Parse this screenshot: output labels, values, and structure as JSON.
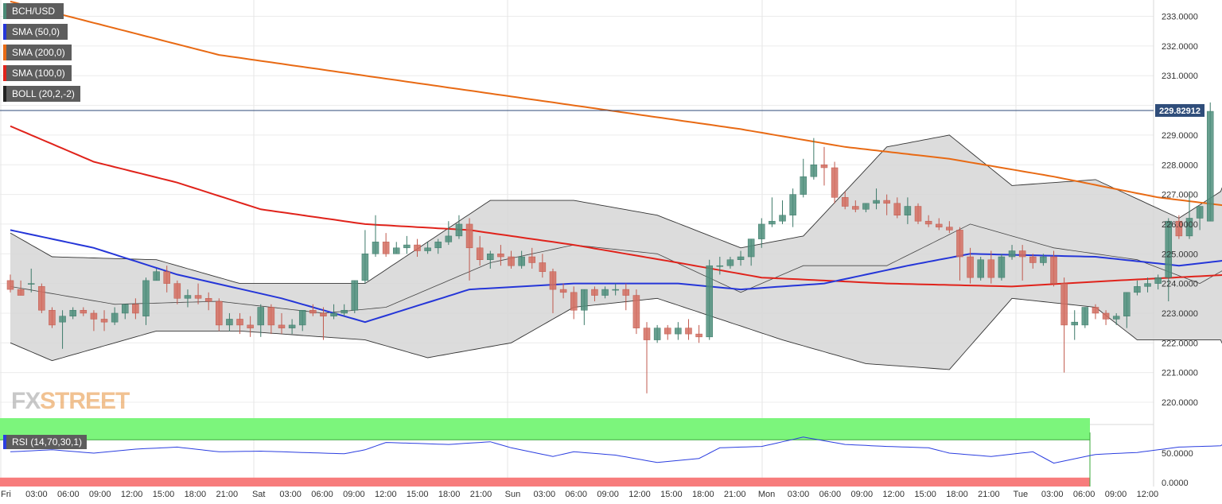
{
  "chart_data": {
    "type": "candlestick",
    "symbol": "BCH/USD",
    "last_price": "229.82912",
    "indicators": [
      {
        "label": "BCH/USD",
        "color": "#4a8a76"
      },
      {
        "label": "SMA (50,0)",
        "color": "#2536d8"
      },
      {
        "label": "SMA (200,0)",
        "color": "#e86a14"
      },
      {
        "label": "SMA (100,0)",
        "color": "#e0231b"
      },
      {
        "label": "BOLL (20,2,-2)",
        "color": "#222222"
      }
    ],
    "y_axis": {
      "ticks": [
        233,
        232,
        231,
        230,
        229,
        228,
        227,
        226,
        225,
        224,
        223,
        222,
        221,
        220
      ],
      "labels": [
        "233.0000",
        "232.0000",
        "231.0000",
        "230.0000",
        "229.0000",
        "228.0000",
        "227.0000",
        "226.0000",
        "225.0000",
        "224.0000",
        "223.0000",
        "222.0000",
        "221.0000",
        "220.0000"
      ],
      "range": [
        219.25,
        233.55
      ]
    },
    "x_axis": {
      "labels": [
        "Fri",
        "03:00",
        "06:00",
        "09:00",
        "12:00",
        "15:00",
        "18:00",
        "21:00",
        "Sat",
        "03:00",
        "06:00",
        "09:00",
        "12:00",
        "15:00",
        "18:00",
        "21:00",
        "Sun",
        "03:00",
        "06:00",
        "09:00",
        "12:00",
        "15:00",
        "18:00",
        "21:00",
        "Mon",
        "03:00",
        "06:00",
        "09:00",
        "12:00",
        "15:00",
        "18:00",
        "21:00",
        "Tue",
        "03:00",
        "06:00",
        "09:00",
        "12:00"
      ],
      "interval_hours": 3
    },
    "candles": [
      [
        224.1,
        224.3,
        223.8,
        223.7
      ],
      [
        223.8,
        224.1,
        223.6,
        224.1
      ],
      [
        224.0,
        224.5,
        224.0,
        223.7
      ],
      [
        223.9,
        224.0,
        223.1,
        223.0
      ],
      [
        223.1,
        223.2,
        222.6,
        222.5
      ],
      [
        222.7,
        223.1,
        222.9,
        221.8
      ],
      [
        222.9,
        223.2,
        223.1,
        222.8
      ],
      [
        223.1,
        223.2,
        223.0,
        222.9
      ],
      [
        223.0,
        223.1,
        222.8,
        222.4
      ],
      [
        222.8,
        223.1,
        222.7,
        222.4
      ],
      [
        222.7,
        223.2,
        223.0,
        222.6
      ],
      [
        223.0,
        223.2,
        223.3,
        222.8
      ],
      [
        223.3,
        223.5,
        223.0,
        222.8
      ],
      [
        222.9,
        224.2,
        224.1,
        222.6
      ],
      [
        224.1,
        224.5,
        224.4,
        225.3
      ],
      [
        224.4,
        224.6,
        224.0,
        223.7
      ],
      [
        224.0,
        224.1,
        223.5,
        223.3
      ],
      [
        223.5,
        223.8,
        223.6,
        223.2
      ],
      [
        223.6,
        224.0,
        223.5,
        223.3
      ],
      [
        223.5,
        223.7,
        223.4,
        223.1
      ],
      [
        223.4,
        223.5,
        222.6,
        222.4
      ],
      [
        222.6,
        223.0,
        222.8,
        222.4
      ],
      [
        222.8,
        223.0,
        222.6,
        222.3
      ],
      [
        222.6,
        222.9,
        222.5,
        222.2
      ],
      [
        222.6,
        223.3,
        223.2,
        222.2
      ],
      [
        223.2,
        223.3,
        222.6,
        222.3
      ],
      [
        222.6,
        223.0,
        222.5,
        222.3
      ],
      [
        222.5,
        222.8,
        222.6,
        222.3
      ],
      [
        222.6,
        223.1,
        223.1,
        222.4
      ],
      [
        223.1,
        223.3,
        223.0,
        222.9
      ],
      [
        223.0,
        223.2,
        222.9,
        222.1
      ],
      [
        222.9,
        223.3,
        223.0,
        222.8
      ],
      [
        223.0,
        223.3,
        223.1,
        222.9
      ],
      [
        223.1,
        223.4,
        224.1,
        223.0
      ],
      [
        224.1,
        225.8,
        225.0,
        224.0
      ],
      [
        225.0,
        226.3,
        225.4,
        224.9
      ],
      [
        225.4,
        225.7,
        225.0,
        224.9
      ],
      [
        225.0,
        225.4,
        225.2,
        225.0
      ],
      [
        225.2,
        225.6,
        225.3,
        225.0
      ],
      [
        225.3,
        225.5,
        225.1,
        224.9
      ],
      [
        225.1,
        225.4,
        225.2,
        225.0
      ],
      [
        225.2,
        225.5,
        225.4,
        225.0
      ],
      [
        225.4,
        226.1,
        225.6,
        225.3
      ],
      [
        225.6,
        226.3,
        226.0,
        225.5
      ],
      [
        226.0,
        226.2,
        225.2,
        224.1
      ],
      [
        225.2,
        225.6,
        224.8,
        224.6
      ],
      [
        224.8,
        225.1,
        225.0,
        224.5
      ],
      [
        225.0,
        225.3,
        224.9,
        224.6
      ],
      [
        224.9,
        225.1,
        224.6,
        224.5
      ],
      [
        224.6,
        225.1,
        224.9,
        224.5
      ],
      [
        224.9,
        225.2,
        224.7,
        224.5
      ],
      [
        224.7,
        225.0,
        224.4,
        224.2
      ],
      [
        224.4,
        224.5,
        223.8,
        223.0
      ],
      [
        223.8,
        224.0,
        223.7,
        223.5
      ],
      [
        223.7,
        223.9,
        223.1,
        222.8
      ],
      [
        223.1,
        223.5,
        223.8,
        222.6
      ],
      [
        223.8,
        223.9,
        223.6,
        223.4
      ],
      [
        223.6,
        223.9,
        223.8,
        223.5
      ],
      [
        223.8,
        224.0,
        223.8,
        223.6
      ],
      [
        223.8,
        224.0,
        223.6,
        223.1
      ],
      [
        223.6,
        223.8,
        222.5,
        222.3
      ],
      [
        222.5,
        222.7,
        222.1,
        220.3
      ],
      [
        222.1,
        222.6,
        222.5,
        222.0
      ],
      [
        222.5,
        222.6,
        222.3,
        222.1
      ],
      [
        222.3,
        222.7,
        222.5,
        222.1
      ],
      [
        222.5,
        222.8,
        222.3,
        222.1
      ],
      [
        222.3,
        222.6,
        222.2,
        222.0
      ],
      [
        222.2,
        224.8,
        224.6,
        222.1
      ],
      [
        224.6,
        224.9,
        224.6,
        224.3
      ],
      [
        224.6,
        224.9,
        224.8,
        224.5
      ],
      [
        224.8,
        225.1,
        224.9,
        224.6
      ],
      [
        224.9,
        225.5,
        225.5,
        224.6
      ],
      [
        225.5,
        226.2,
        226.0,
        225.2
      ],
      [
        226.0,
        226.9,
        226.1,
        225.9
      ],
      [
        226.1,
        226.8,
        226.3,
        226.0
      ],
      [
        226.3,
        227.2,
        227.0,
        225.9
      ],
      [
        227.0,
        228.2,
        227.6,
        226.9
      ],
      [
        227.6,
        228.9,
        228.0,
        227.5
      ],
      [
        228.0,
        228.6,
        227.9,
        227.3
      ],
      [
        227.9,
        228.1,
        226.9,
        226.7
      ],
      [
        226.9,
        227.1,
        226.6,
        226.5
      ],
      [
        226.6,
        226.8,
        226.5,
        226.4
      ],
      [
        226.5,
        226.7,
        226.7,
        226.4
      ],
      [
        226.7,
        227.2,
        226.8,
        226.5
      ],
      [
        226.8,
        227.0,
        226.7,
        226.3
      ],
      [
        226.7,
        226.9,
        226.3,
        226.2
      ],
      [
        226.3,
        226.9,
        226.6,
        226.0
      ],
      [
        226.6,
        226.7,
        226.1,
        226.0
      ],
      [
        226.1,
        226.3,
        226.0,
        225.9
      ],
      [
        226.0,
        226.2,
        225.9,
        225.8
      ],
      [
        225.9,
        226.1,
        225.8,
        225.7
      ],
      [
        225.8,
        225.9,
        224.9,
        224.1
      ],
      [
        224.9,
        225.2,
        224.2,
        224.0
      ],
      [
        224.2,
        224.9,
        224.8,
        224.1
      ],
      [
        224.8,
        225.1,
        224.2,
        224.0
      ],
      [
        224.2,
        225.0,
        224.9,
        224.1
      ],
      [
        224.9,
        225.3,
        225.1,
        224.8
      ],
      [
        225.1,
        225.3,
        224.9,
        224.1
      ],
      [
        224.9,
        225.0,
        224.7,
        224.5
      ],
      [
        224.7,
        225.0,
        224.9,
        224.6
      ],
      [
        224.9,
        225.1,
        224.0,
        223.9
      ],
      [
        224.0,
        224.2,
        222.6,
        221.0
      ],
      [
        222.6,
        223.1,
        222.7,
        222.1
      ],
      [
        222.6,
        223.0,
        223.2,
        222.5
      ],
      [
        223.2,
        223.3,
        223.0,
        222.8
      ],
      [
        223.0,
        223.1,
        222.8,
        222.6
      ],
      [
        222.8,
        223.0,
        222.9,
        222.6
      ],
      [
        222.9,
        223.5,
        223.7,
        222.5
      ],
      [
        223.7,
        224.1,
        223.9,
        223.6
      ],
      [
        223.9,
        224.2,
        224.0,
        223.7
      ],
      [
        224.0,
        224.3,
        224.2,
        223.8
      ],
      [
        224.2,
        226.2,
        226.1,
        223.4
      ],
      [
        226.1,
        226.3,
        225.6,
        225.5
      ],
      [
        225.6,
        227.1,
        226.2,
        225.5
      ],
      [
        226.2,
        226.6,
        226.6,
        225.8
      ],
      [
        226.1,
        230.1,
        229.8,
        226.1
      ]
    ],
    "sma200": [
      [
        0,
        233.5
      ],
      [
        10,
        232.6
      ],
      [
        20,
        231.7
      ],
      [
        30,
        231.2
      ],
      [
        40,
        230.7
      ],
      [
        50,
        230.2
      ],
      [
        60,
        229.7
      ],
      [
        70,
        229.2
      ],
      [
        80,
        228.6
      ],
      [
        90,
        228.2
      ],
      [
        100,
        227.6
      ],
      [
        110,
        226.9
      ],
      [
        117,
        226.6
      ]
    ],
    "sma100": [
      [
        0,
        229.3
      ],
      [
        8,
        228.1
      ],
      [
        16,
        227.4
      ],
      [
        24,
        226.5
      ],
      [
        34,
        226.0
      ],
      [
        44,
        225.8
      ],
      [
        54,
        225.3
      ],
      [
        64,
        224.7
      ],
      [
        72,
        224.2
      ],
      [
        84,
        224.0
      ],
      [
        96,
        223.9
      ],
      [
        106,
        224.1
      ],
      [
        117,
        224.3
      ]
    ],
    "sma50": [
      [
        0,
        225.8
      ],
      [
        8,
        225.2
      ],
      [
        16,
        224.3
      ],
      [
        26,
        223.5
      ],
      [
        34,
        222.7
      ],
      [
        44,
        223.8
      ],
      [
        54,
        224.0
      ],
      [
        64,
        224.0
      ],
      [
        70,
        223.8
      ],
      [
        78,
        224.0
      ],
      [
        86,
        224.6
      ],
      [
        92,
        225.0
      ],
      [
        104,
        224.9
      ],
      [
        112,
        224.6
      ],
      [
        117,
        224.8
      ]
    ],
    "boll_upper": [
      [
        0,
        225.7
      ],
      [
        4,
        224.9
      ],
      [
        14,
        224.8
      ],
      [
        22,
        224.0
      ],
      [
        34,
        224.0
      ],
      [
        46,
        226.8
      ],
      [
        54,
        226.8
      ],
      [
        62,
        226.3
      ],
      [
        70,
        225.2
      ],
      [
        76,
        225.6
      ],
      [
        84,
        228.6
      ],
      [
        90,
        229.0
      ],
      [
        96,
        227.3
      ],
      [
        104,
        227.5
      ],
      [
        112,
        226.2
      ],
      [
        116,
        227.1
      ],
      [
        117,
        228.0
      ]
    ],
    "boll_middle": [
      [
        0,
        223.9
      ],
      [
        10,
        223.3
      ],
      [
        20,
        223.4
      ],
      [
        30,
        223.0
      ],
      [
        36,
        223.2
      ],
      [
        46,
        224.7
      ],
      [
        54,
        225.3
      ],
      [
        62,
        225.0
      ],
      [
        70,
        223.7
      ],
      [
        76,
        224.6
      ],
      [
        84,
        224.6
      ],
      [
        92,
        226.0
      ],
      [
        100,
        225.2
      ],
      [
        108,
        224.8
      ],
      [
        114,
        224.0
      ],
      [
        117,
        224.6
      ]
    ],
    "boll_lower": [
      [
        0,
        222.0
      ],
      [
        4,
        221.4
      ],
      [
        14,
        222.4
      ],
      [
        22,
        222.4
      ],
      [
        34,
        222.1
      ],
      [
        40,
        221.5
      ],
      [
        48,
        222.0
      ],
      [
        54,
        223.2
      ],
      [
        62,
        223.5
      ],
      [
        68,
        222.8
      ],
      [
        74,
        222.1
      ],
      [
        82,
        221.3
      ],
      [
        90,
        221.1
      ],
      [
        96,
        223.5
      ],
      [
        104,
        223.2
      ],
      [
        108,
        222.1
      ],
      [
        116,
        222.1
      ],
      [
        117,
        221.3
      ]
    ],
    "rsi": {
      "label": "RSI (14,70,30,1)",
      "ticks": [
        50,
        0
      ],
      "labels": [
        "50.0000",
        "0.0000"
      ],
      "range": [
        0,
        100
      ],
      "overbought": 70,
      "oversold": 30,
      "values": [
        [
          0,
          52
        ],
        [
          4,
          55
        ],
        [
          8,
          50
        ],
        [
          12,
          56
        ],
        [
          16,
          59
        ],
        [
          20,
          52
        ],
        [
          24,
          53
        ],
        [
          28,
          51
        ],
        [
          32,
          49
        ],
        [
          34,
          55
        ],
        [
          36,
          66
        ],
        [
          42,
          63
        ],
        [
          46,
          67
        ],
        [
          48,
          58
        ],
        [
          52,
          45
        ],
        [
          54,
          52
        ],
        [
          58,
          47
        ],
        [
          62,
          36
        ],
        [
          66,
          42
        ],
        [
          68,
          58
        ],
        [
          72,
          60
        ],
        [
          76,
          74
        ],
        [
          80,
          63
        ],
        [
          84,
          60
        ],
        [
          88,
          58
        ],
        [
          90,
          50
        ],
        [
          94,
          45
        ],
        [
          98,
          52
        ],
        [
          100,
          35
        ],
        [
          104,
          48
        ],
        [
          108,
          51
        ],
        [
          112,
          59
        ],
        [
          116,
          61
        ],
        [
          117,
          72
        ]
      ]
    }
  }
}
